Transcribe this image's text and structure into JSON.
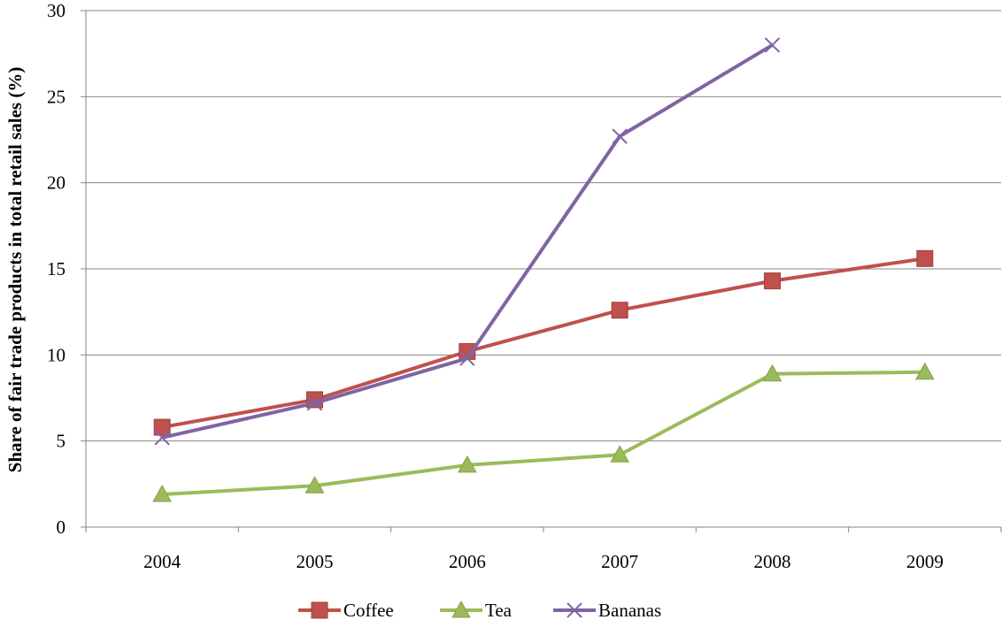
{
  "chart_data": {
    "type": "line",
    "title": "",
    "xlabel": "",
    "ylabel": "Share of fair trade products in total retail sales (%)",
    "categories": [
      "2004",
      "2005",
      "2006",
      "2007",
      "2008",
      "2009"
    ],
    "ylim": [
      0,
      30
    ],
    "yticks": [
      0,
      5,
      10,
      15,
      20,
      25,
      30
    ],
    "grid": "horizontal",
    "legend_position": "bottom",
    "series": [
      {
        "name": "Coffee",
        "color": "#C0504D",
        "marker": "square",
        "values": [
          5.8,
          7.4,
          10.2,
          12.6,
          14.3,
          15.6
        ]
      },
      {
        "name": "Tea",
        "color": "#9BBB59",
        "marker": "triangle",
        "values": [
          1.9,
          2.4,
          3.6,
          4.2,
          8.9,
          9.0
        ]
      },
      {
        "name": "Bananas",
        "color": "#8064A2",
        "marker": "x",
        "values": [
          5.2,
          7.2,
          9.8,
          22.7,
          28.0,
          null
        ]
      }
    ]
  }
}
